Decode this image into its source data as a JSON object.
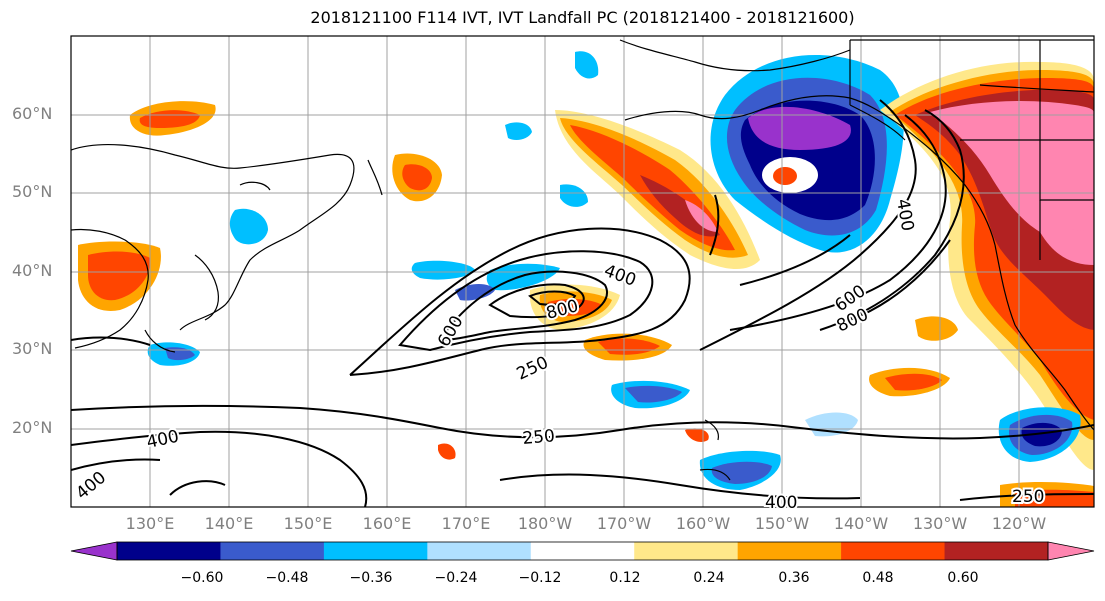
{
  "title": "2018121100 F114 IVT, IVT Landfall PC (2018121400 - 2018121600)",
  "lat_labels": [
    "60°N",
    "50°N",
    "40°N",
    "30°N",
    "20°N"
  ],
  "lon_labels": [
    "130°E",
    "140°E",
    "150°E",
    "160°E",
    "170°E",
    "180°W",
    "170°W",
    "160°W",
    "150°W",
    "140°W",
    "130°W",
    "120°W"
  ],
  "contour_labels": [
    "400",
    "600",
    "800",
    "250",
    "400",
    "600",
    "800",
    "400",
    "250",
    "400",
    "400",
    "250"
  ],
  "colorbar": {
    "ticks": [
      "−0.60",
      "−0.48",
      "−0.36",
      "−0.24",
      "−0.12",
      "0.12",
      "0.24",
      "0.36",
      "0.48",
      "0.60"
    ],
    "colors": [
      "#9932CC",
      "#00008B",
      "#3A5BCC",
      "#00BFFF",
      "#B0E0FF",
      "#FFFFFF",
      "#FFE88A",
      "#FFA500",
      "#FF4500",
      "#B22222",
      "#FF85B0"
    ]
  }
}
